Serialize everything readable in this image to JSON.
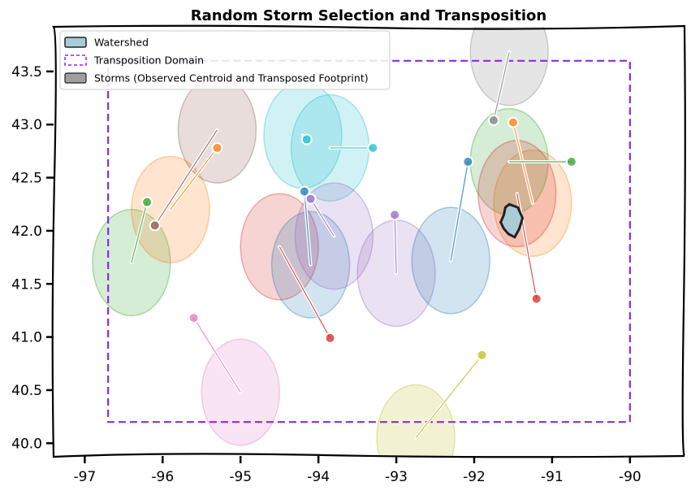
{
  "chart_data": {
    "type": "map",
    "title": "Random Storm Selection and Transposition",
    "xlabel": "",
    "ylabel": "",
    "xlim": [
      -97.4,
      -89.3
    ],
    "ylim": [
      39.88,
      43.92
    ],
    "x_ticks": [
      -97,
      -96,
      -95,
      -94,
      -93,
      -92,
      -91,
      -90
    ],
    "x_tick_labels": [
      "-97",
      "-96",
      "-95",
      "-94",
      "-93",
      "-92",
      "-91",
      "-90"
    ],
    "y_ticks": [
      40.0,
      40.5,
      41.0,
      41.5,
      42.0,
      42.5,
      43.0,
      43.5
    ],
    "y_tick_labels": [
      "40.0",
      "40.5",
      "41.0",
      "41.5",
      "42.0",
      "42.5",
      "43.0",
      "43.5"
    ],
    "grid": false,
    "legend_position": "top-left",
    "legend": [
      {
        "label": "Watershed",
        "kind": "watershed"
      },
      {
        "label": "Transposition Domain",
        "kind": "domain"
      },
      {
        "label": "Storms (Observed Centroid and Transposed Footprint)",
        "kind": "storm"
      }
    ],
    "transposition_domain": {
      "lon_min": -96.7,
      "lon_max": -90.0,
      "lat_min": 40.2,
      "lat_max": 43.6,
      "color": "#8a2be2"
    },
    "watershed": {
      "color": "#a7ccd8",
      "outline": [
        [
          -91.55,
          42.25
        ],
        [
          -91.44,
          42.22
        ],
        [
          -91.38,
          42.12
        ],
        [
          -91.42,
          42.02
        ],
        [
          -91.48,
          41.94
        ],
        [
          -91.56,
          41.97
        ],
        [
          -91.62,
          42.02
        ],
        [
          -91.66,
          42.08
        ],
        [
          -91.62,
          42.15
        ],
        [
          -91.6,
          42.22
        ]
      ]
    },
    "storms": [
      {
        "color": "#2ca02c",
        "observed": [
          -96.2,
          42.27
        ],
        "transposed": [
          -96.4,
          41.7
        ]
      },
      {
        "color": "#ff7f0e",
        "observed": [
          -95.3,
          42.78
        ],
        "transposed": [
          -95.9,
          42.2
        ]
      },
      {
        "color": "#8c564b",
        "observed": [
          -96.1,
          42.05
        ],
        "transposed": [
          -95.3,
          42.95
        ]
      },
      {
        "color": "#e377c2",
        "observed": [
          -95.6,
          41.18
        ],
        "transposed": [
          -95.0,
          40.48
        ]
      },
      {
        "color": "#d62728",
        "observed": [
          -93.85,
          40.99
        ],
        "transposed": [
          -94.5,
          41.85
        ]
      },
      {
        "color": "#1f77b4",
        "observed": [
          -94.18,
          42.37
        ],
        "transposed": [
          -94.1,
          41.68
        ]
      },
      {
        "color": "#17becf",
        "observed": [
          -93.3,
          42.78
        ],
        "transposed": [
          -93.85,
          42.78
        ]
      },
      {
        "color": "#17becf",
        "observed": [
          -94.15,
          42.86
        ],
        "transposed": [
          -94.2,
          42.9
        ]
      },
      {
        "color": "#9467bd",
        "observed": [
          -93.02,
          42.15
        ],
        "transposed": [
          -93.0,
          41.6
        ]
      },
      {
        "color": "#9467bd",
        "observed": [
          -94.1,
          42.3
        ],
        "transposed": [
          -93.8,
          41.95
        ]
      },
      {
        "color": "#1f77b4",
        "observed": [
          -92.08,
          42.65
        ],
        "transposed": [
          -92.3,
          41.72
        ]
      },
      {
        "color": "#bcbd22",
        "observed": [
          -91.9,
          40.83
        ],
        "transposed": [
          -92.75,
          40.05
        ]
      },
      {
        "color": "#7f7f7f",
        "observed": [
          -91.75,
          43.04
        ],
        "transposed": [
          -91.55,
          43.68
        ]
      },
      {
        "color": "#ff7f0e",
        "observed": [
          -91.5,
          43.02
        ],
        "transposed": [
          -91.25,
          42.26
        ]
      },
      {
        "color": "#2ca02c",
        "observed": [
          -90.75,
          42.65
        ],
        "transposed": [
          -91.55,
          42.65
        ]
      },
      {
        "color": "#d62728",
        "observed": [
          -91.2,
          41.36
        ],
        "transposed": [
          -91.45,
          42.35
        ]
      }
    ]
  }
}
